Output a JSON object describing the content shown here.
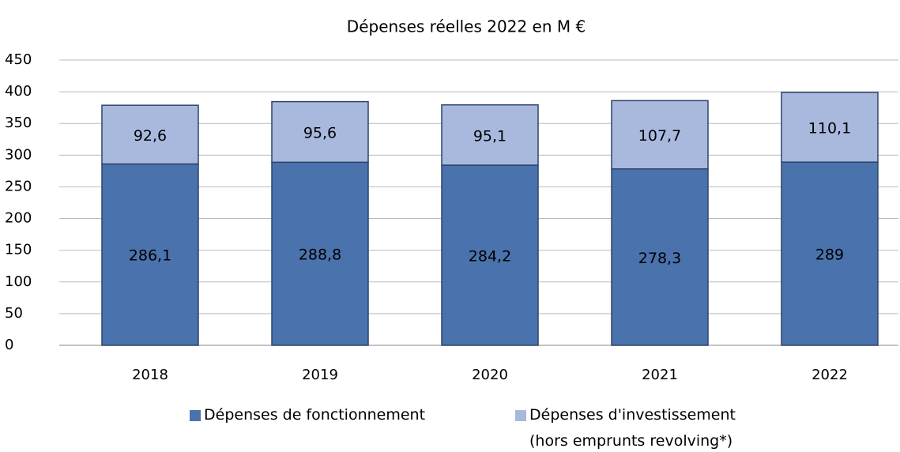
{
  "chart_data": {
    "type": "stacked_bar",
    "title": "Dépenses réelles 2022 en M €",
    "categories": [
      "2018",
      "2019",
      "2020",
      "2021",
      "2022"
    ],
    "series": [
      {
        "name": "Dépenses de fonctionnement",
        "color": "#4a72ad",
        "values": [
          286.1,
          288.8,
          284.2,
          278.3,
          289
        ],
        "value_labels": [
          "286,1",
          "288,8",
          "284,2",
          "278,3",
          "289"
        ]
      },
      {
        "name": "Dépenses d'investissement (hors emprunts revolving*)",
        "color": "#a9b9de",
        "values": [
          92.6,
          95.6,
          95.1,
          107.7,
          110.1
        ],
        "value_labels": [
          "92,6",
          "95,6",
          "95,1",
          "107,7",
          "110,1"
        ]
      }
    ],
    "ylim": [
      0,
      450
    ],
    "yticks": [
      0,
      50,
      100,
      150,
      200,
      250,
      300,
      350,
      400,
      450
    ],
    "grid": true,
    "legend": "bottom"
  }
}
